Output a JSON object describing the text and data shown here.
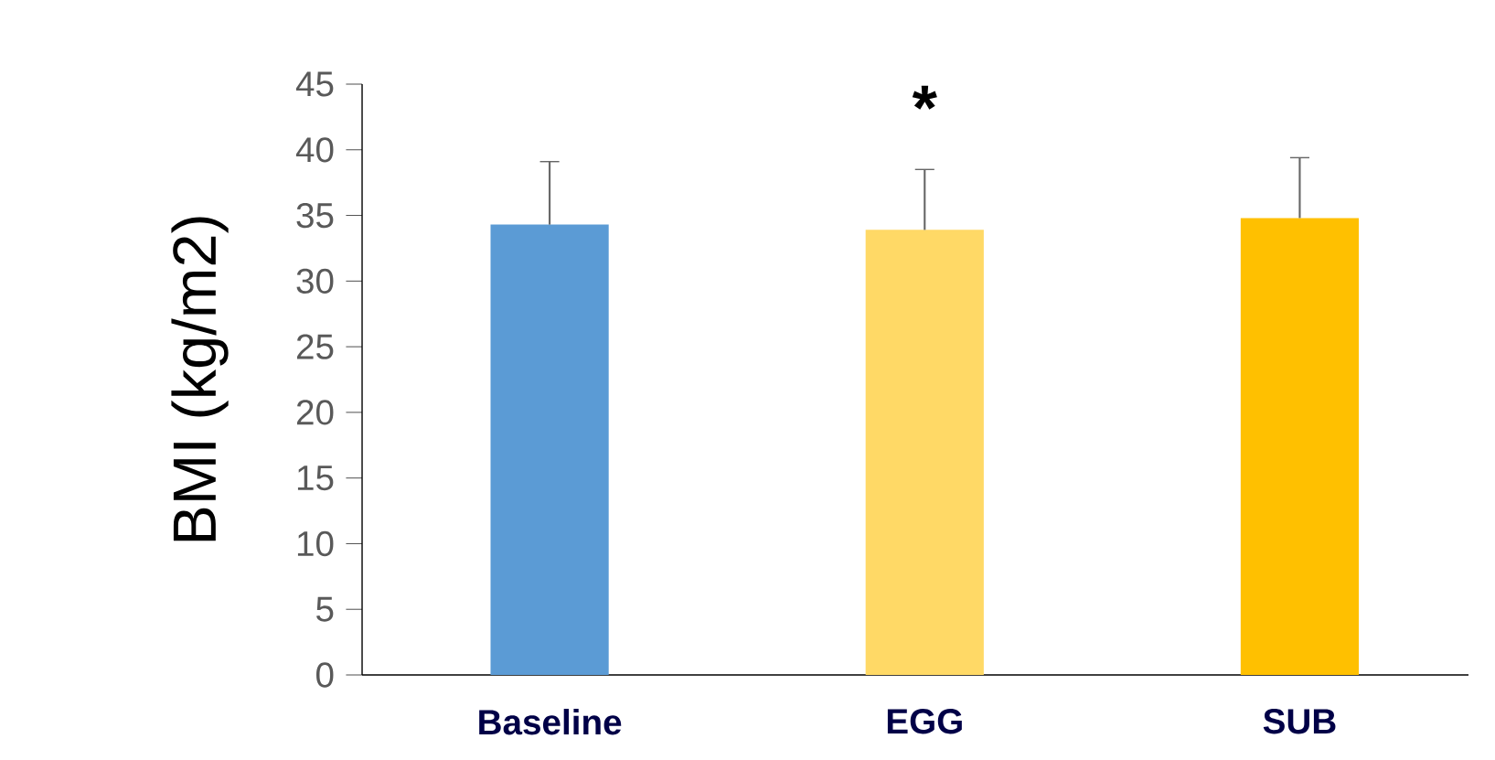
{
  "chart_data": {
    "type": "bar",
    "ylabel": "BMI (kg/m2)",
    "categories": [
      "Baseline",
      "EGG",
      "SUB"
    ],
    "values": [
      34.3,
      33.9,
      34.8
    ],
    "errors": [
      4.8,
      4.6,
      4.6
    ],
    "colors": [
      "#5b9bd5",
      "#ffd966",
      "#ffc000"
    ],
    "ylim": [
      0,
      45
    ],
    "yticks": [
      0,
      5,
      10,
      15,
      20,
      25,
      30,
      35,
      40,
      45
    ],
    "grid": false,
    "annotations": [
      "*"
    ]
  }
}
